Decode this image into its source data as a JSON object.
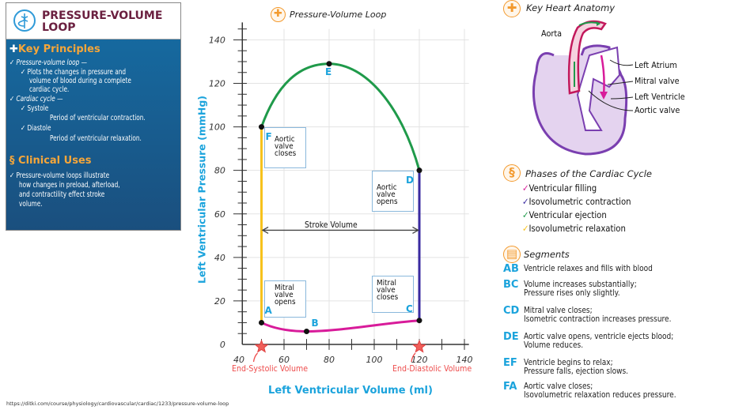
{
  "panel": {
    "title_line1": "PRESSURE-VOLUME",
    "title_line2": "LOOP",
    "key_principles": {
      "heading": "Key Principles",
      "items": [
        "Pressure-volume loop —",
        "Plots the changes in pressure and",
        "volume of blood during a complete",
        "cardiac cycle.",
        "Cardiac cycle —",
        "Systole",
        "Period of ventricular contraction.",
        "Diastole",
        "Period of ventricular relaxation."
      ]
    },
    "clinical_uses": {
      "heading": "Clinical Uses",
      "lines": [
        "Pressure-volume loops illustrate",
        "how changes in preload, afterload,",
        "and contractility effect stroke",
        "volume."
      ]
    }
  },
  "chart_data": {
    "type": "line",
    "title": "Pressure-Volume Loop",
    "xlabel": "Left Ventricular Volume (ml)",
    "ylabel": "Left Ventricular Pressure (mmHg)",
    "xlim": [
      40,
      140
    ],
    "ylim": [
      0,
      140
    ],
    "x_ticks": [
      "40",
      "60",
      "80",
      "100",
      "120",
      "140"
    ],
    "y_ticks": [
      "0",
      "20",
      "40",
      "60",
      "80",
      "100",
      "120",
      "140"
    ],
    "grid": true,
    "points": [
      {
        "label": "A",
        "x": 50,
        "y": 10
      },
      {
        "label": "B",
        "x": 70,
        "y": 6
      },
      {
        "label": "C",
        "x": 120,
        "y": 11
      },
      {
        "label": "D",
        "x": 120,
        "y": 80
      },
      {
        "label": "E",
        "x": 80,
        "y": 129
      },
      {
        "label": "F",
        "x": 50,
        "y": 100
      }
    ],
    "segments": [
      {
        "name": "Ventricular filling",
        "from": "A",
        "to": "C",
        "color": "#d81b9a"
      },
      {
        "name": "Isovolumetric contraction",
        "from": "C",
        "to": "D",
        "color": "#3a2aa0"
      },
      {
        "name": "Ventricular ejection",
        "from": "D",
        "to": "F",
        "color": "#1f9a4a"
      },
      {
        "name": "Isovolumetric relaxation",
        "from": "F",
        "to": "A",
        "color": "#f7c21c"
      }
    ],
    "annotations": {
      "aortic_closes": [
        "Aortic",
        "valve",
        "closes"
      ],
      "aortic_opens": [
        "Aortic",
        "valve",
        "opens"
      ],
      "mitral_opens": [
        "Mitral",
        "valve",
        "opens"
      ],
      "mitral_closes": [
        "Mitral",
        "valve",
        "closes"
      ],
      "stroke_volume": "Stroke Volume",
      "end_systolic": "End-Systolic Volume",
      "end_diastolic": "End-Diastolic Volume"
    }
  },
  "anatomy": {
    "heading": "Key Heart Anatomy",
    "labels": [
      "Aorta",
      "Left Atrium",
      "Mitral valve",
      "Left Ventricle",
      "Aortic valve"
    ]
  },
  "phases": {
    "heading": "Phases of the Cardiac Cycle",
    "items": [
      {
        "label": "Ventricular filling",
        "color": "#d81b9a"
      },
      {
        "label": "Isovolumetric contraction",
        "color": "#3a2aa0"
      },
      {
        "label": "Ventricular ejection",
        "color": "#1f9a4a"
      },
      {
        "label": "Isovolumetric relaxation",
        "color": "#f7c21c"
      }
    ]
  },
  "segments": {
    "heading": "Segments",
    "items": [
      {
        "code": "AB",
        "line1": "Ventricle relaxes and fills with blood",
        "line2": ""
      },
      {
        "code": "BC",
        "line1": "Volume increases substantially;",
        "line2": "Pressure rises only slightly."
      },
      {
        "code": "CD",
        "line1": "Mitral valve closes;",
        "line2": "Isometric contraction increases pressure."
      },
      {
        "code": "DE",
        "line1": "Aortic valve opens, ventricle ejects blood;",
        "line2": "Volume reduces."
      },
      {
        "code": "EF",
        "line1": "Ventricle begins to relax;",
        "line2": "Pressure falls, ejection slows."
      },
      {
        "code": "FA",
        "line1": "Aortic valve closes;",
        "line2": "Isovolumetric relaxation reduces pressure."
      }
    ]
  },
  "footer": {
    "url": "https://ditki.com/course/physiology/cardiovascular/cardiac/1233/pressure-volume-loop"
  }
}
